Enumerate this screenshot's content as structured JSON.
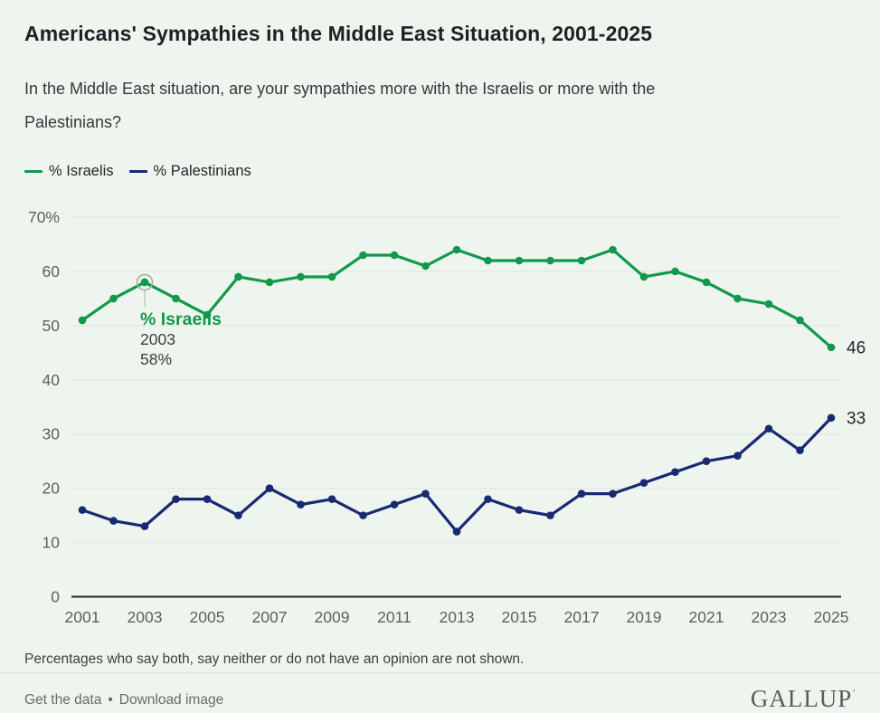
{
  "header": {
    "title": "Americans' Sympathies in the Middle East Situation, 2001-2025",
    "subtitle_lines": [
      "In the Middle East situation, are your sympathies more with the Israelis or more with the",
      "Palestinians?"
    ]
  },
  "footer": {
    "note": "Percentages who say both, say neither or do not have an opinion are not shown.",
    "get_data_label": "Get the data",
    "separator": "•",
    "download_label": "Download image",
    "brand": "GALLUP",
    "brand_tm": "’"
  },
  "colors": {
    "background": "#eef5ee",
    "israelis": "#12984b",
    "palestinians": "#172a72",
    "grid": "#e0e5df",
    "axis": "#23261f",
    "tick_label": "#5c635e",
    "end_label": "#23272a",
    "tooltip_text": "#3a3f3d",
    "hover_ring": "#a3aaa2",
    "hover_stem": "#c4c9c2"
  },
  "chart_data": {
    "type": "line",
    "title": "Americans' Sympathies in the Middle East Situation, 2001-2025",
    "x": [
      2001,
      2002,
      2003,
      2004,
      2005,
      2006,
      2007,
      2008,
      2009,
      2010,
      2011,
      2012,
      2013,
      2014,
      2015,
      2016,
      2017,
      2018,
      2019,
      2020,
      2021,
      2022,
      2023,
      2024,
      2025
    ],
    "series": [
      {
        "name": "israelis",
        "label": "% Israelis",
        "color_key": "israelis",
        "values": [
          51,
          55,
          58,
          55,
          52,
          59,
          58,
          59,
          59,
          63,
          63,
          61,
          64,
          62,
          62,
          62,
          62,
          64,
          59,
          60,
          58,
          55,
          54,
          51,
          46
        ],
        "end_label": "46"
      },
      {
        "name": "palestinians",
        "label": "% Palestinians",
        "color_key": "palestinians",
        "values": [
          16,
          14,
          13,
          18,
          18,
          15,
          20,
          17,
          18,
          15,
          17,
          19,
          12,
          18,
          16,
          15,
          19,
          19,
          21,
          23,
          25,
          26,
          31,
          27,
          33
        ],
        "end_label": "33"
      }
    ],
    "ylim": [
      0,
      70
    ],
    "yticks": [
      0,
      10,
      20,
      30,
      40,
      50,
      60,
      70
    ],
    "ytick_top_label": "70%",
    "xticks": [
      2001,
      2003,
      2005,
      2007,
      2009,
      2011,
      2013,
      2015,
      2017,
      2019,
      2021,
      2023,
      2025
    ],
    "grid": true,
    "legend_position": "top-left",
    "tooltip": {
      "series_index": 0,
      "point_index": 2,
      "series_label": "% Israelis",
      "year": "2003",
      "value": "58%"
    }
  }
}
